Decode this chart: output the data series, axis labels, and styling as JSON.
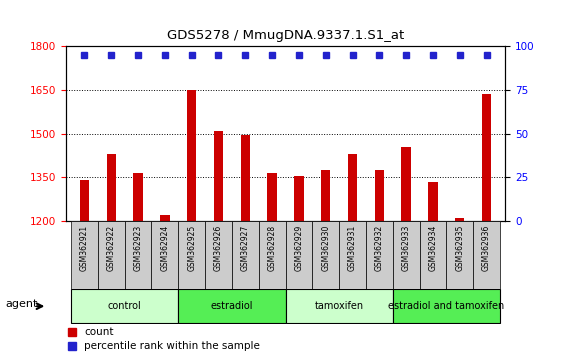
{
  "title": "GDS5278 / MmugDNA.9337.1.S1_at",
  "samples": [
    "GSM362921",
    "GSM362922",
    "GSM362923",
    "GSM362924",
    "GSM362925",
    "GSM362926",
    "GSM362927",
    "GSM362928",
    "GSM362929",
    "GSM362930",
    "GSM362931",
    "GSM362932",
    "GSM362933",
    "GSM362934",
    "GSM362935",
    "GSM362936"
  ],
  "counts": [
    1340,
    1430,
    1365,
    1220,
    1650,
    1510,
    1495,
    1365,
    1355,
    1375,
    1430,
    1375,
    1455,
    1335,
    1210,
    1635
  ],
  "ylim_left": [
    1200,
    1800
  ],
  "ylim_right": [
    0,
    100
  ],
  "yticks_left": [
    1200,
    1350,
    1500,
    1650,
    1800
  ],
  "yticks_right": [
    0,
    25,
    50,
    75,
    100
  ],
  "bar_color": "#cc0000",
  "dot_color": "#2222cc",
  "tick_bg_color": "#cccccc",
  "groups": [
    {
      "label": "control",
      "start": 0,
      "end": 4,
      "color": "#ccffcc"
    },
    {
      "label": "estradiol",
      "start": 4,
      "end": 8,
      "color": "#55ee55"
    },
    {
      "label": "tamoxifen",
      "start": 8,
      "end": 12,
      "color": "#ccffcc"
    },
    {
      "label": "estradiol and tamoxifen",
      "start": 12,
      "end": 16,
      "color": "#55ee55"
    }
  ],
  "agent_label": "agent",
  "legend_count_label": "count",
  "legend_percentile_label": "percentile rank within the sample",
  "fig_bg_color": "#ffffff"
}
